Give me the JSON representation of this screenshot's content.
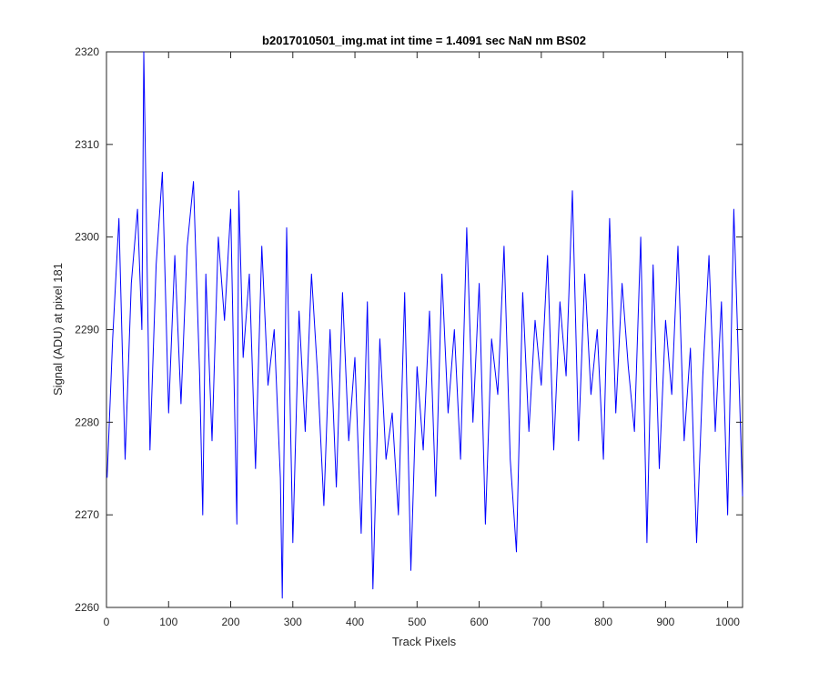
{
  "chart_data": {
    "type": "line",
    "title": "b2017010501_img.mat int time = 1.4091 sec  NaN nm BS02",
    "xlabel": "Track Pixels",
    "ylabel": "Signal (ADU) at pixel 181",
    "xlim": [
      0,
      1024
    ],
    "ylim": [
      2260,
      2320
    ],
    "xticks": [
      "0",
      "100",
      "200",
      "300",
      "400",
      "500",
      "600",
      "700",
      "800",
      "900",
      "1000"
    ],
    "yticks": [
      "2260",
      "2270",
      "2280",
      "2290",
      "2300",
      "2310",
      "2320"
    ],
    "grid": false,
    "legend": "none",
    "series": [
      {
        "color": "#0000ff",
        "x": [
          1,
          10,
          20,
          30,
          40,
          50,
          57,
          60,
          70,
          80,
          90,
          100,
          110,
          120,
          130,
          140,
          150,
          155,
          160,
          170,
          180,
          190,
          200,
          210,
          213,
          220,
          230,
          240,
          250,
          260,
          270,
          280,
          283,
          290,
          300,
          310,
          320,
          330,
          340,
          350,
          360,
          370,
          380,
          390,
          400,
          410,
          420,
          429,
          440,
          450,
          460,
          470,
          480,
          490,
          500,
          510,
          520,
          530,
          540,
          550,
          560,
          570,
          580,
          590,
          600,
          610,
          620,
          630,
          640,
          650,
          660,
          670,
          680,
          690,
          700,
          710,
          720,
          730,
          740,
          750,
          760,
          770,
          780,
          790,
          800,
          810,
          820,
          830,
          840,
          850,
          860,
          870,
          880,
          890,
          900,
          910,
          920,
          930,
          940,
          950,
          960,
          970,
          980,
          990,
          1000,
          1010,
          1024
        ],
        "y": [
          2274,
          2289,
          2302,
          2276,
          2295,
          2303,
          2290,
          2320,
          2277,
          2297,
          2307,
          2281,
          2298,
          2282,
          2299,
          2306,
          2285,
          2270,
          2296,
          2278,
          2300,
          2291,
          2303,
          2269,
          2305,
          2287,
          2296,
          2275,
          2299,
          2284,
          2290,
          2274,
          2261,
          2301,
          2267,
          2292,
          2279,
          2296,
          2285,
          2271,
          2290,
          2273,
          2294,
          2278,
          2287,
          2268,
          2293,
          2262,
          2289,
          2276,
          2281,
          2270,
          2294,
          2264,
          2286,
          2277,
          2292,
          2272,
          2296,
          2281,
          2290,
          2276,
          2301,
          2280,
          2295,
          2269,
          2289,
          2283,
          2299,
          2276,
          2266,
          2294,
          2279,
          2291,
          2284,
          2298,
          2277,
          2293,
          2285,
          2305,
          2278,
          2296,
          2283,
          2290,
          2276,
          2302,
          2281,
          2295,
          2286,
          2279,
          2300,
          2267,
          2297,
          2275,
          2291,
          2283,
          2299,
          2278,
          2288,
          2267,
          2285,
          2298,
          2279,
          2293,
          2270,
          2303,
          2272
        ]
      }
    ]
  }
}
